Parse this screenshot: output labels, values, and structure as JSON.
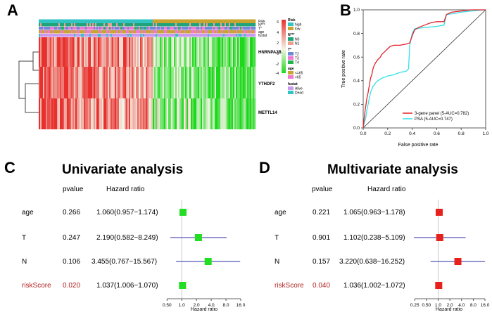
{
  "panels": {
    "a": {
      "letter": "A"
    },
    "b": {
      "letter": "B"
    },
    "c": {
      "letter": "C"
    },
    "d": {
      "letter": "D"
    }
  },
  "colors": {
    "heat_high": "#e8312f",
    "heat_mid": "#f4f4e6",
    "heat_low": "#1ed81e",
    "risk_high": "#30c5c3",
    "risk_low": "#c8a431",
    "n0": "#1fa37a",
    "n1": "#ed9f8f",
    "t2": "#6f88d8",
    "t3": "#f07ad0",
    "t4": "#1fb64e",
    "age_le65": "#c8a431",
    "age_gt65": "#f07ad0",
    "alive": "#c99aef",
    "dead": "#30c5c3",
    "roc_gene": "#e3242b",
    "roc_psa": "#33e0e8",
    "uni_box": "#22dd22",
    "multi_box": "#e8201c",
    "ci_line": "#2a2aa0",
    "risk_text": "#b22222"
  },
  "chart_data": [
    {
      "type": "heatmap",
      "panel": "A",
      "genes": [
        "HNRNPA2B1",
        "YTHDF2",
        "METTL14"
      ],
      "annotation_tracks": [
        "Risk",
        "N***",
        "T*",
        "age",
        "fustat"
      ],
      "legend": {
        "risk": {
          "title": "Risk",
          "items": [
            "high",
            "low"
          ]
        },
        "n": {
          "title": "N***",
          "items": [
            "N0",
            "N1"
          ]
        },
        "t": {
          "title": "T*",
          "items": [
            "T2",
            "T3",
            "T4"
          ]
        },
        "age": {
          "title": "age",
          "items": [
            "<=65",
            ">65"
          ]
        },
        "fustat": {
          "title": "fustat",
          "items": [
            "Alive",
            "Dead"
          ]
        },
        "scale_ticks": [
          "6",
          "4",
          "2",
          "0",
          "-2",
          "-4"
        ]
      },
      "color_scale": {
        "min": -4,
        "max": 6
      }
    },
    {
      "type": "line",
      "panel": "B",
      "xlabel": "False positive rate",
      "ylabel": "True positive rate",
      "xlim": [
        0,
        1
      ],
      "ylim": [
        0,
        1
      ],
      "x_ticks": [
        "0.0",
        "0.2",
        "0.4",
        "0.6",
        "0.8",
        "1.0"
      ],
      "y_ticks": [
        "0.0",
        "0.2",
        "0.4",
        "0.6",
        "0.8",
        "1.0"
      ],
      "series": [
        {
          "name": "3-gene panel (5-AUC=0.782)",
          "points": [
            [
              0,
              0
            ],
            [
              0.01,
              0.1
            ],
            [
              0.02,
              0.18
            ],
            [
              0.03,
              0.25
            ],
            [
              0.04,
              0.3
            ],
            [
              0.05,
              0.36
            ],
            [
              0.06,
              0.42
            ],
            [
              0.07,
              0.45
            ],
            [
              0.08,
              0.5
            ],
            [
              0.09,
              0.53
            ],
            [
              0.1,
              0.55
            ],
            [
              0.12,
              0.58
            ],
            [
              0.14,
              0.6
            ],
            [
              0.15,
              0.62
            ],
            [
              0.18,
              0.65
            ],
            [
              0.2,
              0.67
            ],
            [
              0.22,
              0.69
            ],
            [
              0.25,
              0.7
            ],
            [
              0.3,
              0.7
            ],
            [
              0.35,
              0.71
            ],
            [
              0.38,
              0.72
            ],
            [
              0.4,
              0.78
            ],
            [
              0.42,
              0.83
            ],
            [
              0.45,
              0.85
            ],
            [
              0.5,
              0.87
            ],
            [
              0.55,
              0.89
            ],
            [
              0.6,
              0.9
            ],
            [
              0.66,
              0.9
            ],
            [
              0.68,
              0.96
            ],
            [
              0.72,
              0.98
            ],
            [
              0.8,
              0.99
            ],
            [
              0.88,
              1.0
            ],
            [
              1.0,
              1.0
            ]
          ]
        },
        {
          "name": "PSA (5-AUC=0.747)",
          "points": [
            [
              0,
              0
            ],
            [
              0.01,
              0.05
            ],
            [
              0.02,
              0.08
            ],
            [
              0.03,
              0.15
            ],
            [
              0.04,
              0.2
            ],
            [
              0.05,
              0.25
            ],
            [
              0.06,
              0.3
            ],
            [
              0.08,
              0.35
            ],
            [
              0.1,
              0.38
            ],
            [
              0.12,
              0.4
            ],
            [
              0.15,
              0.42
            ],
            [
              0.2,
              0.44
            ],
            [
              0.25,
              0.45
            ],
            [
              0.3,
              0.47
            ],
            [
              0.35,
              0.48
            ],
            [
              0.37,
              0.5
            ],
            [
              0.38,
              0.7
            ],
            [
              0.4,
              0.8
            ],
            [
              0.42,
              0.84
            ],
            [
              0.5,
              0.85
            ],
            [
              0.6,
              0.86
            ],
            [
              0.66,
              0.87
            ],
            [
              0.68,
              0.96
            ],
            [
              0.75,
              0.97
            ],
            [
              0.8,
              0.98
            ],
            [
              0.88,
              0.99
            ],
            [
              1.0,
              1.0
            ]
          ]
        }
      ],
      "diagonal": true
    },
    {
      "type": "forest",
      "panel": "C",
      "title": "Univariate analysis",
      "headers": {
        "pvalue": "pvalue",
        "hr": "Hazard ratio"
      },
      "xlabel": "Hazard ratio",
      "ticks": [
        "0.50",
        "1.0",
        "2.0",
        "4.0",
        "8.0",
        "16.0"
      ],
      "tick_values": [
        0.5,
        1,
        2,
        4,
        8,
        16
      ],
      "xlim": [
        0.42,
        16
      ],
      "rows": [
        {
          "name": "age",
          "pvalue": "0.266",
          "hr_text": "1.060(0.957−1.174)",
          "hr": 1.06,
          "lo": 0.957,
          "hi": 1.174,
          "highlight": false
        },
        {
          "name": "T",
          "pvalue": "0.247",
          "hr_text": "2.190(0.582−8.249)",
          "hr": 2.19,
          "lo": 0.582,
          "hi": 8.249,
          "highlight": false
        },
        {
          "name": "N",
          "pvalue": "0.106",
          "hr_text": "3.455(0.767−15.567)",
          "hr": 3.455,
          "lo": 0.767,
          "hi": 15.567,
          "highlight": false
        },
        {
          "name": "riskScore",
          "pvalue": "0.020",
          "hr_text": "1.037(1.006−1.070)",
          "hr": 1.037,
          "lo": 1.006,
          "hi": 1.07,
          "highlight": true
        }
      ]
    },
    {
      "type": "forest",
      "panel": "D",
      "title": "Multivariate analysis",
      "headers": {
        "pvalue": "pvalue",
        "hr": "Hazard ratio"
      },
      "xlabel": "Hazard ratio",
      "ticks": [
        "0.25",
        "0.50",
        "1.0",
        "2.0",
        "4.0",
        "8.0",
        "16.0"
      ],
      "tick_values": [
        0.25,
        0.5,
        1,
        2,
        4,
        8,
        16
      ],
      "xlim": [
        0.21,
        16
      ],
      "rows": [
        {
          "name": "age",
          "pvalue": "0.221",
          "hr_text": "1.065(0.963−1.178)",
          "hr": 1.065,
          "lo": 0.963,
          "hi": 1.178,
          "highlight": false
        },
        {
          "name": "T",
          "pvalue": "0.901",
          "hr_text": "1.102(0.238−5.109)",
          "hr": 1.102,
          "lo": 0.238,
          "hi": 5.109,
          "highlight": false
        },
        {
          "name": "N",
          "pvalue": "0.157",
          "hr_text": "3.220(0.638−16.252)",
          "hr": 3.22,
          "lo": 0.638,
          "hi": 16.252,
          "highlight": false
        },
        {
          "name": "riskScore",
          "pvalue": "0.040",
          "hr_text": "1.036(1.002−1.072)",
          "hr": 1.036,
          "lo": 1.002,
          "hi": 1.072,
          "highlight": true
        }
      ]
    }
  ]
}
